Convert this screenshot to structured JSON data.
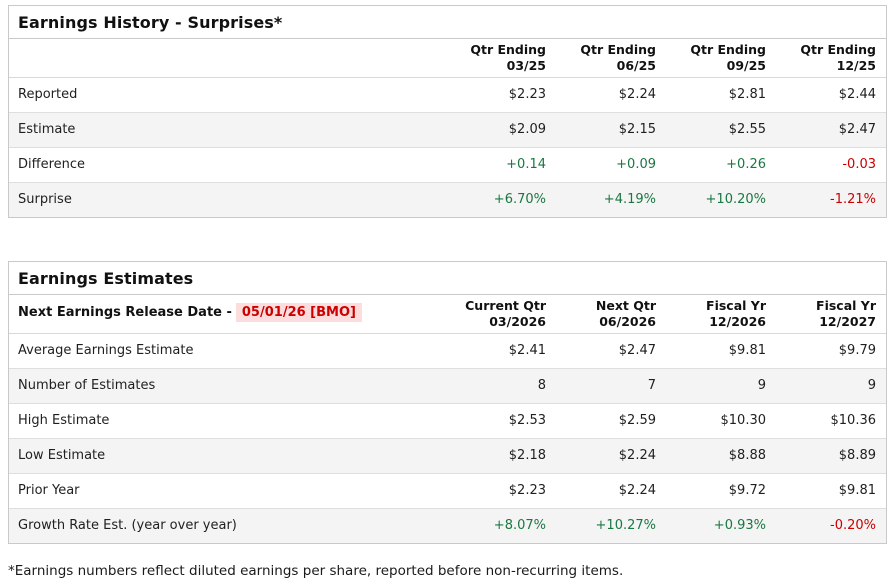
{
  "colors": {
    "positive": "#1b7742",
    "negative": "#cc0000",
    "date_highlight_bg": "#fcdcdc"
  },
  "history_table": {
    "title": "Earnings History - Surprises*",
    "columns": [
      {
        "line1": "Qtr Ending",
        "line2": "03/25"
      },
      {
        "line1": "Qtr Ending",
        "line2": "06/25"
      },
      {
        "line1": "Qtr Ending",
        "line2": "09/25"
      },
      {
        "line1": "Qtr Ending",
        "line2": "12/25"
      }
    ],
    "rows": [
      {
        "label": "Reported",
        "values": [
          "$2.23",
          "$2.24",
          "$2.81",
          "$2.44"
        ]
      },
      {
        "label": "Estimate",
        "values": [
          "$2.09",
          "$2.15",
          "$2.55",
          "$2.47"
        ]
      },
      {
        "label": "Difference",
        "values": [
          "+0.14",
          "+0.09",
          "+0.26",
          "-0.03"
        ]
      },
      {
        "label": "Surprise",
        "values": [
          "+6.70%",
          "+4.19%",
          "+10.20%",
          "-1.21%"
        ]
      }
    ]
  },
  "estimates_table": {
    "title": "Earnings Estimates",
    "next_release_label": "Next Earnings Release Date -",
    "next_release_date": "05/01/26 [BMO]",
    "columns": [
      {
        "line1": "Current Qtr",
        "line2": "03/2026"
      },
      {
        "line1": "Next Qtr",
        "line2": "06/2026"
      },
      {
        "line1": "Fiscal Yr",
        "line2": "12/2026"
      },
      {
        "line1": "Fiscal Yr",
        "line2": "12/2027"
      }
    ],
    "rows": [
      {
        "label": "Average Earnings Estimate",
        "values": [
          "$2.41",
          "$2.47",
          "$9.81",
          "$9.79"
        ]
      },
      {
        "label": "Number of Estimates",
        "values": [
          "8",
          "7",
          "9",
          "9"
        ]
      },
      {
        "label": "High Estimate",
        "values": [
          "$2.53",
          "$2.59",
          "$10.30",
          "$10.36"
        ]
      },
      {
        "label": "Low Estimate",
        "values": [
          "$2.18",
          "$2.24",
          "$8.88",
          "$8.89"
        ]
      },
      {
        "label": "Prior Year",
        "values": [
          "$2.23",
          "$2.24",
          "$9.72",
          "$9.81"
        ]
      },
      {
        "label": "Growth Rate Est. (year over year)",
        "values": [
          "+8.07%",
          "+10.27%",
          "+0.93%",
          "-0.20%"
        ]
      }
    ]
  },
  "footnote": "*Earnings numbers reflect diluted earnings per share, reported before non-recurring items."
}
